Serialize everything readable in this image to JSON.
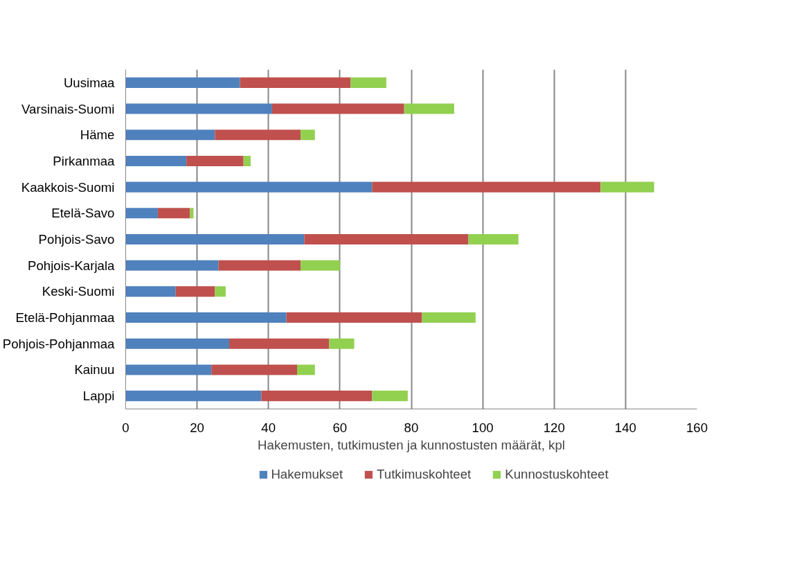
{
  "chart_data": {
    "type": "bar",
    "orientation": "horizontal",
    "stacked": true,
    "categories": [
      "Uusimaa",
      "Varsinais-Suomi",
      "Häme",
      "Pirkanmaa",
      "Kaakkois-Suomi",
      "Etelä-Savo",
      "Pohjois-Savo",
      "Pohjois-Karjala",
      "Keski-Suomi",
      "Etelä-Pohjanmaa",
      "Pohjois-Pohjanmaa",
      "Kainuu",
      "Lappi"
    ],
    "series": [
      {
        "name": "Hakemukset",
        "color": "#4f81bd",
        "values": [
          32,
          41,
          25,
          17,
          69,
          9,
          50,
          26,
          14,
          45,
          29,
          24,
          38
        ]
      },
      {
        "name": "Tutkimuskohteet",
        "color": "#c0504d",
        "values": [
          31,
          37,
          24,
          16,
          64,
          9,
          46,
          23,
          11,
          38,
          28,
          24,
          31
        ]
      },
      {
        "name": "Kunnostuskohteet",
        "color": "#92d050",
        "values": [
          10,
          14,
          4,
          2,
          15,
          1,
          14,
          11,
          3,
          15,
          7,
          5,
          10
        ]
      }
    ],
    "xlabel": "Hakemusten, tutkimusten ja kunnostusten määrät, kpl",
    "xlim": [
      0,
      160
    ],
    "xticks": [
      0,
      20,
      40,
      60,
      80,
      100,
      120,
      140,
      160
    ],
    "grid": "x",
    "legend": "bottom"
  }
}
